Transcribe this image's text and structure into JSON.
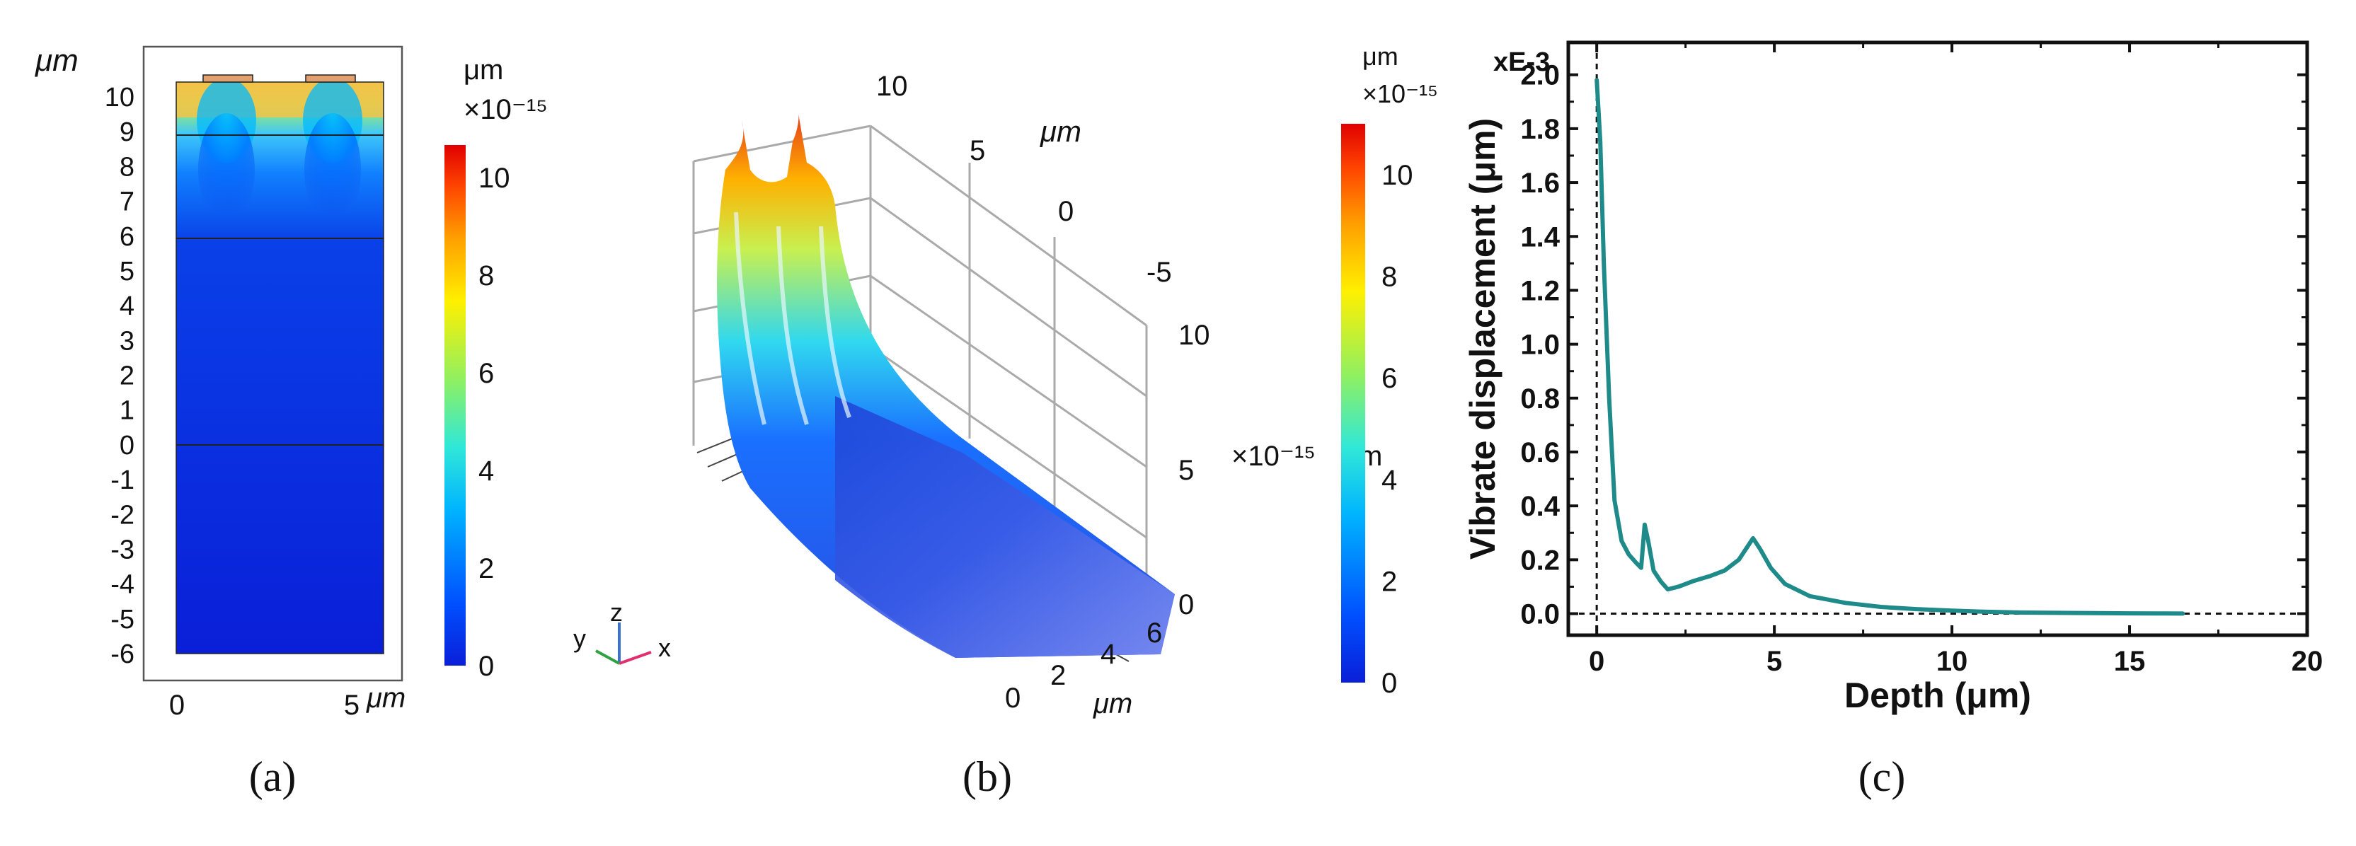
{
  "panel_labels": {
    "a": "(a)",
    "b": "(b)",
    "c": "(c)"
  },
  "panel_a": {
    "y_unit": "μm",
    "x_unit": "μm",
    "y_ticks": [
      "10",
      "9",
      "8",
      "7",
      "6",
      "5",
      "4",
      "3",
      "2",
      "1",
      "0",
      "-1",
      "-2",
      "-3",
      "-4",
      "-5",
      "-6"
    ],
    "x_ticks": [
      "0",
      "5"
    ],
    "colorbar": {
      "unit": "μm",
      "exponent": "×10⁻¹⁵",
      "ticks": [
        "0",
        "2",
        "4",
        "6",
        "8",
        "10"
      ]
    }
  },
  "panel_b": {
    "z_ticks": [
      "0",
      "5",
      "10"
    ],
    "y_ticks": [
      "10",
      "5",
      "0",
      "-5"
    ],
    "y_unit": "μm",
    "x_ticks": [
      "0",
      "2",
      "4",
      "6"
    ],
    "x_unit": "μm",
    "z_exponent": "×10⁻¹⁵",
    "z_unit_partial": "m",
    "triad": {
      "x": "x",
      "y": "y",
      "z": "z"
    },
    "colorbar": {
      "unit": "μm",
      "exponent": "×10⁻¹⁵",
      "ticks": [
        "0",
        "2",
        "4",
        "6",
        "8",
        "10"
      ]
    }
  },
  "chart_data": {
    "type": "line",
    "xlabel": "Depth (μm)",
    "ylabel": "Vibrate displacement (μm)",
    "y_multiplier": "xE-3",
    "xlim": [
      -0.8,
      20
    ],
    "ylim": [
      -0.08,
      2.12
    ],
    "x_ticks": [
      0,
      5,
      10,
      15,
      20
    ],
    "y_ticks": [
      0.0,
      0.2,
      0.4,
      0.6,
      0.8,
      1.0,
      1.2,
      1.4,
      1.6,
      1.8,
      2.0
    ],
    "series": [
      {
        "color": "#1f8a8a",
        "x": [
          0.0,
          0.1,
          0.2,
          0.35,
          0.5,
          0.7,
          0.9,
          1.1,
          1.25,
          1.35,
          1.45,
          1.6,
          1.8,
          2.0,
          2.3,
          2.7,
          3.2,
          3.6,
          4.0,
          4.25,
          4.4,
          4.6,
          4.9,
          5.3,
          6.0,
          7.0,
          8.0,
          9.0,
          10.0,
          11.0,
          12.0,
          13.0,
          14.0,
          15.0,
          16.0,
          16.5
        ],
        "y": [
          1.98,
          1.75,
          1.3,
          0.8,
          0.42,
          0.27,
          0.22,
          0.19,
          0.17,
          0.33,
          0.27,
          0.16,
          0.12,
          0.09,
          0.1,
          0.12,
          0.14,
          0.16,
          0.2,
          0.25,
          0.28,
          0.24,
          0.17,
          0.11,
          0.065,
          0.04,
          0.025,
          0.017,
          0.011,
          0.007,
          0.004,
          0.003,
          0.002,
          0.001,
          0.0005,
          0.0003
        ]
      }
    ],
    "reference_lines": {
      "vertical_x": 0,
      "horizontal_y": 0
    }
  }
}
